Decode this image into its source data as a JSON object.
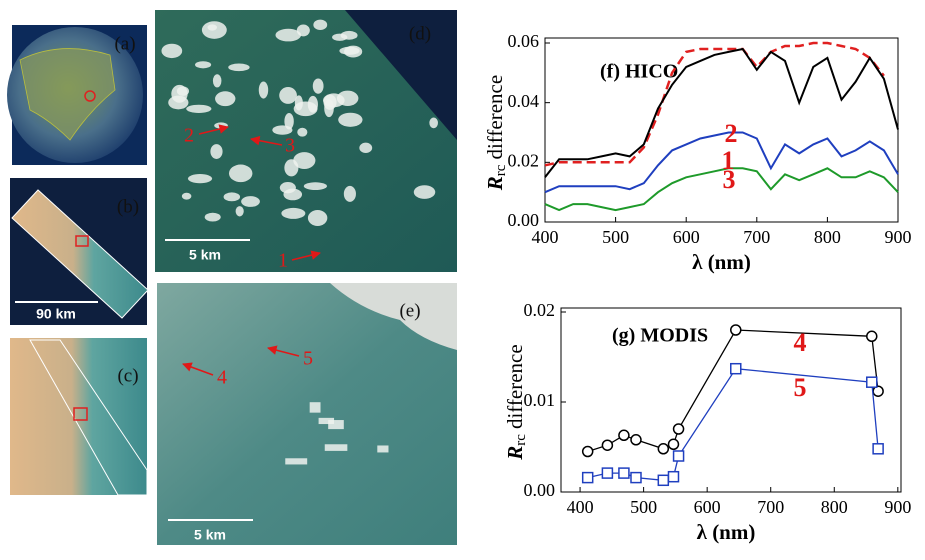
{
  "panels": {
    "a": "(a)",
    "b": "(b)",
    "c": "(c)",
    "d": "(d)",
    "e": "(e)"
  },
  "scale_bars": [
    "90 km",
    "5 km",
    "5 km"
  ],
  "arrow_labels": [
    "1",
    "2",
    "3",
    "4",
    "5"
  ],
  "chart_data": [
    {
      "type": "line",
      "title": "(f) HICO",
      "xlabel": "λ (nm)",
      "ylabel": [
        "R",
        "rc",
        "difference"
      ],
      "x": [
        400,
        420,
        440,
        460,
        480,
        500,
        520,
        540,
        560,
        580,
        600,
        620,
        640,
        660,
        680,
        700,
        720,
        740,
        760,
        780,
        800,
        820,
        840,
        860,
        880,
        900
      ],
      "series": [
        {
          "color": "#e02020",
          "dashed": true,
          "values": [
            0.019,
            0.02,
            0.02,
            0.02,
            0.02,
            0.02,
            0.02,
            0.025,
            0.036,
            0.05,
            0.057,
            0.058,
            0.058,
            0.058,
            0.058,
            0.052,
            0.057,
            0.059,
            0.059,
            0.06,
            0.06,
            0.059,
            0.058,
            0.055,
            0.049,
            null
          ]
        },
        {
          "color": "#000000",
          "values": [
            0.015,
            0.021,
            0.021,
            0.021,
            0.022,
            0.023,
            0.022,
            0.026,
            0.038,
            0.046,
            0.052,
            0.054,
            0.056,
            0.057,
            0.058,
            0.051,
            0.057,
            0.054,
            0.04,
            0.052,
            0.055,
            0.041,
            0.047,
            0.055,
            0.048,
            0.031
          ]
        },
        {
          "color": "#1f3fbf",
          "values": [
            0.01,
            0.012,
            0.012,
            0.012,
            0.012,
            0.012,
            0.011,
            0.013,
            0.019,
            0.024,
            0.026,
            0.028,
            0.029,
            0.03,
            0.03,
            0.028,
            0.018,
            0.026,
            0.023,
            0.026,
            0.028,
            0.022,
            0.024,
            0.027,
            0.024,
            0.016
          ]
        },
        {
          "color": "#1e9a2a",
          "values": [
            0.006,
            0.004,
            0.006,
            0.006,
            0.005,
            0.004,
            0.005,
            0.006,
            0.01,
            0.013,
            0.015,
            0.016,
            0.017,
            0.018,
            0.018,
            0.017,
            0.011,
            0.016,
            0.014,
            0.016,
            0.018,
            0.015,
            0.015,
            0.017,
            0.015,
            0.01
          ]
        }
      ],
      "annotations": [
        "1",
        "2",
        "3"
      ],
      "xlim": [
        400,
        900
      ],
      "ylim": [
        0,
        0.06
      ],
      "xticks": [
        400,
        500,
        600,
        700,
        800,
        900
      ],
      "yticks": [
        {
          "value": 0,
          "label": "0.00"
        },
        {
          "value": 0.02,
          "label": "0.02"
        },
        {
          "value": 0.04,
          "label": "0.04"
        },
        {
          "value": 0.06,
          "label": "0.06"
        }
      ]
    },
    {
      "type": "line",
      "title": "(g) MODIS",
      "xlabel": "λ (nm)",
      "ylabel": [
        "R",
        "rc",
        "difference"
      ],
      "series": [
        {
          "color": "#000000",
          "marker": "circle",
          "x": [
            412,
            443,
            469,
            488,
            531,
            547,
            555,
            645,
            859,
            869
          ],
          "values": [
            0.0045,
            0.0052,
            0.0063,
            0.0058,
            0.0048,
            0.0053,
            0.007,
            0.018,
            0.0173,
            0.0112
          ]
        },
        {
          "color": "#1f3fbf",
          "marker": "square",
          "x": [
            412,
            443,
            469,
            488,
            531,
            547,
            555,
            645,
            859,
            869
          ],
          "values": [
            0.0016,
            0.0021,
            0.0021,
            0.0016,
            0.0013,
            0.0017,
            0.004,
            0.0137,
            0.0122,
            0.0048
          ]
        }
      ],
      "annotations": [
        "4",
        "5"
      ],
      "xlim": [
        370,
        905
      ],
      "ylim": [
        0,
        0.02
      ],
      "xticks": [
        400,
        500,
        600,
        700,
        800,
        900
      ],
      "yticks": [
        {
          "value": 0,
          "label": "0.00"
        },
        {
          "value": 0.01,
          "label": "0.01"
        },
        {
          "value": 0.02,
          "label": "0.02"
        }
      ]
    }
  ]
}
